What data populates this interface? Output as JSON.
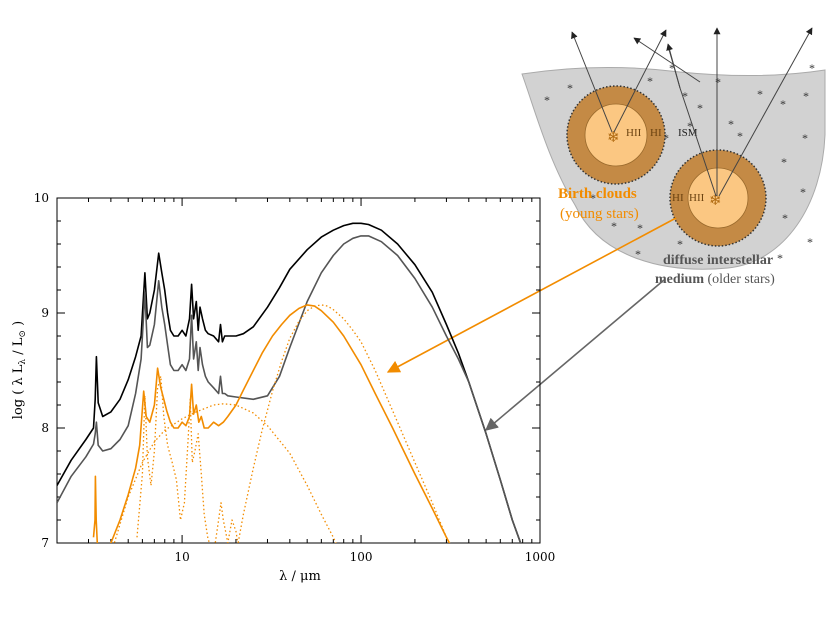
{
  "chart_data": {
    "type": "line",
    "xlabel": "λ / μm",
    "ylabel": "log ( λ L_λ / L_⊙ )",
    "ylabel_parts": {
      "pre": "log ( λ L",
      "sub_lambda": "λ",
      "mid": " / L",
      "sub_sun": "⊙",
      "post": " )"
    },
    "xlabel_parts": {
      "lam": "λ",
      "unit": " / μm"
    },
    "x_scale": "log",
    "xlim": [
      2,
      1000
    ],
    "ylim": [
      7,
      10
    ],
    "x_ticks": [
      {
        "value": 10,
        "label": "10"
      },
      {
        "value": 100,
        "label": "100"
      },
      {
        "value": 1000,
        "label": "1000"
      }
    ],
    "y_ticks": [
      {
        "value": 7,
        "label": "7"
      },
      {
        "value": 8,
        "label": "8"
      },
      {
        "value": 9,
        "label": "9"
      },
      {
        "value": 10,
        "label": "10"
      }
    ],
    "grid": false,
    "series": [
      {
        "color": "#000000",
        "style": "solid",
        "x": [
          2.0,
          2.4,
          2.9,
          3.2,
          3.27,
          3.32,
          3.4,
          3.6,
          4.0,
          4.5,
          5.0,
          5.5,
          5.9,
          6.2,
          6.4,
          6.6,
          7.0,
          7.4,
          7.7,
          8.0,
          8.3,
          8.6,
          9.0,
          9.5,
          10.0,
          10.5,
          11.0,
          11.3,
          11.6,
          12.0,
          12.3,
          12.6,
          13.0,
          13.5,
          14.0,
          15.0,
          16.0,
          16.4,
          16.8,
          17.3,
          18,
          20,
          22,
          25,
          30,
          35,
          40,
          50,
          60,
          70,
          80,
          90,
          100,
          110,
          130,
          160,
          200,
          250,
          300,
          350,
          400,
          500,
          600,
          700,
          800
        ],
        "y": [
          7.5,
          7.72,
          7.9,
          8.0,
          8.25,
          8.62,
          8.22,
          8.1,
          8.14,
          8.25,
          8.42,
          8.62,
          8.8,
          9.35,
          8.95,
          9.0,
          9.2,
          9.52,
          9.35,
          9.2,
          9.0,
          8.85,
          8.8,
          8.8,
          8.85,
          8.8,
          8.95,
          9.25,
          8.95,
          9.1,
          8.85,
          9.05,
          8.95,
          8.85,
          8.82,
          8.8,
          8.75,
          8.9,
          8.75,
          8.8,
          8.8,
          8.8,
          8.82,
          8.88,
          9.05,
          9.22,
          9.38,
          9.55,
          9.66,
          9.72,
          9.76,
          9.78,
          9.78,
          9.77,
          9.72,
          9.6,
          9.42,
          9.18,
          8.9,
          8.65,
          8.4,
          7.95,
          7.55,
          7.2,
          6.95
        ]
      },
      {
        "color": "#555555",
        "style": "solid",
        "x": [
          2.0,
          2.4,
          2.9,
          3.2,
          3.27,
          3.32,
          3.4,
          3.6,
          4.0,
          4.5,
          5.0,
          5.5,
          5.9,
          6.2,
          6.4,
          6.6,
          7.0,
          7.4,
          7.7,
          8.0,
          8.3,
          8.6,
          9.0,
          9.5,
          10.0,
          10.5,
          11.0,
          11.3,
          11.6,
          12.0,
          12.3,
          12.6,
          13.0,
          13.5,
          14.0,
          15.0,
          16.0,
          16.4,
          16.8,
          17.3,
          18,
          20,
          25,
          30,
          35,
          40,
          50,
          60,
          70,
          80,
          90,
          100,
          110,
          130,
          160,
          200,
          250,
          300,
          350,
          400,
          500,
          600,
          700,
          800
        ],
        "y": [
          7.35,
          7.58,
          7.75,
          7.86,
          7.95,
          8.05,
          7.85,
          7.8,
          7.82,
          7.9,
          8.02,
          8.3,
          8.6,
          9.18,
          8.7,
          8.72,
          8.9,
          9.28,
          9.05,
          8.9,
          8.72,
          8.55,
          8.5,
          8.5,
          8.55,
          8.5,
          8.6,
          8.98,
          8.6,
          8.75,
          8.5,
          8.7,
          8.55,
          8.45,
          8.4,
          8.35,
          8.3,
          8.45,
          8.3,
          8.3,
          8.28,
          8.27,
          8.25,
          8.28,
          8.45,
          8.7,
          9.1,
          9.35,
          9.5,
          9.6,
          9.65,
          9.67,
          9.67,
          9.62,
          9.5,
          9.3,
          9.05,
          8.8,
          8.6,
          8.4,
          7.95,
          7.55,
          7.2,
          6.95
        ]
      },
      {
        "color": "#f28c00",
        "style": "solid",
        "x": [
          3.2,
          3.26,
          3.28,
          3.31,
          3.36,
          3.6,
          4.0,
          4.5,
          5.0,
          5.5,
          5.8,
          6.1,
          6.3,
          6.6,
          7.0,
          7.3,
          7.6,
          7.9,
          8.2,
          8.6,
          9.0,
          9.5,
          10.0,
          10.5,
          11.0,
          11.3,
          11.6,
          12.0,
          12.4,
          12.8,
          13.3,
          14,
          15,
          16,
          17,
          18,
          20,
          22,
          25,
          28,
          32,
          36,
          40,
          45,
          50,
          55,
          60,
          70,
          80,
          100,
          120,
          150,
          200,
          250,
          300,
          350
        ],
        "y": [
          7.05,
          7.2,
          7.58,
          7.2,
          7.0,
          6.9,
          7.0,
          7.2,
          7.42,
          7.65,
          7.85,
          8.32,
          8.1,
          8.05,
          8.2,
          8.52,
          8.35,
          8.25,
          8.15,
          8.05,
          8.0,
          8.0,
          8.05,
          8.02,
          8.1,
          8.38,
          8.12,
          8.2,
          8.05,
          8.1,
          8.0,
          8.0,
          8.05,
          8.02,
          8.05,
          8.1,
          8.2,
          8.33,
          8.5,
          8.65,
          8.8,
          8.9,
          8.98,
          9.04,
          9.07,
          9.06,
          9.02,
          8.92,
          8.8,
          8.55,
          8.3,
          8.0,
          7.6,
          7.3,
          7.05,
          6.85
        ]
      },
      {
        "color": "#f28c00",
        "style": "dotted",
        "x": [
          3.4,
          4,
          5,
          6,
          7,
          8,
          10,
          12,
          15,
          17,
          20,
          25,
          30,
          40,
          50,
          60,
          70,
          80
        ],
        "y": [
          6.5,
          6.9,
          7.4,
          7.7,
          7.88,
          7.98,
          8.08,
          8.14,
          8.2,
          8.21,
          8.2,
          8.13,
          8.02,
          7.78,
          7.5,
          7.25,
          7.05,
          6.85
        ]
      },
      {
        "color": "#f28c00",
        "style": "dotted",
        "x": [
          5.6,
          6.0,
          6.2,
          6.4,
          6.7,
          7.0,
          7.3,
          7.6,
          7.9,
          8.3,
          8.8,
          9.3,
          9.8,
          10.3,
          10.8,
          11.1,
          11.4,
          11.8,
          12.3,
          12.8,
          13.3,
          13.9,
          14.5
        ],
        "y": [
          7.05,
          7.6,
          8.28,
          7.75,
          7.5,
          7.8,
          8.35,
          8.45,
          8.1,
          7.85,
          7.7,
          7.55,
          7.2,
          7.35,
          7.9,
          8.25,
          7.7,
          7.8,
          7.95,
          7.6,
          7.25,
          7.05,
          6.95
        ]
      },
      {
        "color": "#f28c00",
        "style": "dotted",
        "x": [
          15,
          16,
          16.5,
          17,
          17.5,
          18,
          19,
          20,
          21
        ],
        "y": [
          6.9,
          7.2,
          7.35,
          7.2,
          7.1,
          7.0,
          7.2,
          7.1,
          6.9
        ]
      },
      {
        "color": "#f28c00",
        "style": "dotted",
        "x": [
          20,
          22,
          25,
          28,
          32,
          36,
          40,
          45,
          50,
          55,
          60,
          65,
          70,
          80,
          90,
          100,
          120,
          150,
          200,
          250,
          300,
          350
        ],
        "y": [
          6.9,
          7.25,
          7.65,
          7.98,
          8.32,
          8.58,
          8.78,
          8.93,
          9.02,
          9.06,
          9.07,
          9.06,
          9.03,
          8.95,
          8.85,
          8.75,
          8.5,
          8.15,
          7.7,
          7.35,
          7.05,
          6.85
        ]
      }
    ]
  },
  "diagram": {
    "hii": "HII",
    "hi": "HI",
    "ism": "ISM",
    "birth_clouds_line1": "Birth clouds",
    "birth_clouds_line2": "(young stars)",
    "diffuse_line1": "diffuse interstellar",
    "diffuse_line2_bold": "medium",
    "diffuse_line2_rest": " (older stars)",
    "star_glyph": "*",
    "cluster_glyph": "❄",
    "colors": {
      "orange": "#f28c00",
      "grey_arrow": "#666666",
      "medium": "#d2d2d2",
      "shell": "#c48a45",
      "core": "#fbc782"
    }
  }
}
